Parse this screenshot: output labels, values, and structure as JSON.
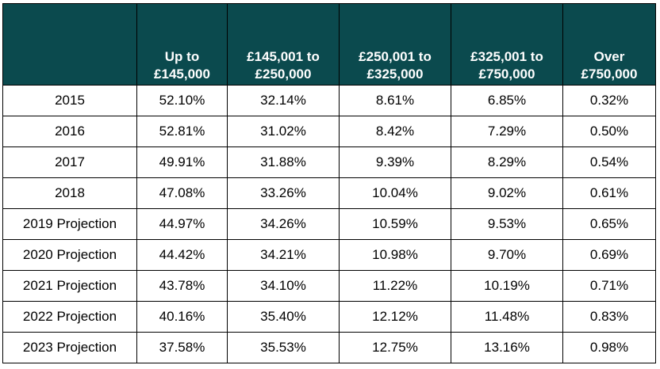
{
  "chart_data": {
    "type": "table",
    "columns": [
      "",
      "Up to £145,000",
      "£145,001 to £250,000",
      "£250,001 to £325,000",
      "£325,001 to £750,000",
      "Over £750,000"
    ],
    "header_lines": [
      [
        "",
        ""
      ],
      [
        "Up to",
        "£145,000"
      ],
      [
        "£145,001 to",
        "£250,000"
      ],
      [
        "£250,001 to",
        "£325,000"
      ],
      [
        "£325,001 to",
        "£750,000"
      ],
      [
        "Over",
        "£750,000"
      ]
    ],
    "rows": [
      [
        "2015",
        "52.10%",
        "32.14%",
        "8.61%",
        "6.85%",
        "0.32%"
      ],
      [
        "2016",
        "52.81%",
        "31.02%",
        "8.42%",
        "7.29%",
        "0.50%"
      ],
      [
        "2017",
        "49.91%",
        "31.88%",
        "9.39%",
        "8.29%",
        "0.54%"
      ],
      [
        "2018",
        "47.08%",
        "33.26%",
        "10.04%",
        "9.02%",
        "0.61%"
      ],
      [
        "2019 Projection",
        "44.97%",
        "34.26%",
        "10.59%",
        "9.53%",
        "0.65%"
      ],
      [
        "2020 Projection",
        "44.42%",
        "34.21%",
        "10.98%",
        "9.70%",
        "0.69%"
      ],
      [
        "2021 Projection",
        "43.78%",
        "34.10%",
        "11.22%",
        "10.19%",
        "0.71%"
      ],
      [
        "2022 Projection",
        "40.16%",
        "35.40%",
        "12.12%",
        "11.48%",
        "0.83%"
      ],
      [
        "2023 Projection",
        "37.58%",
        "35.53%",
        "12.75%",
        "13.16%",
        "0.98%"
      ]
    ],
    "header_color": "#0b4a4e"
  }
}
